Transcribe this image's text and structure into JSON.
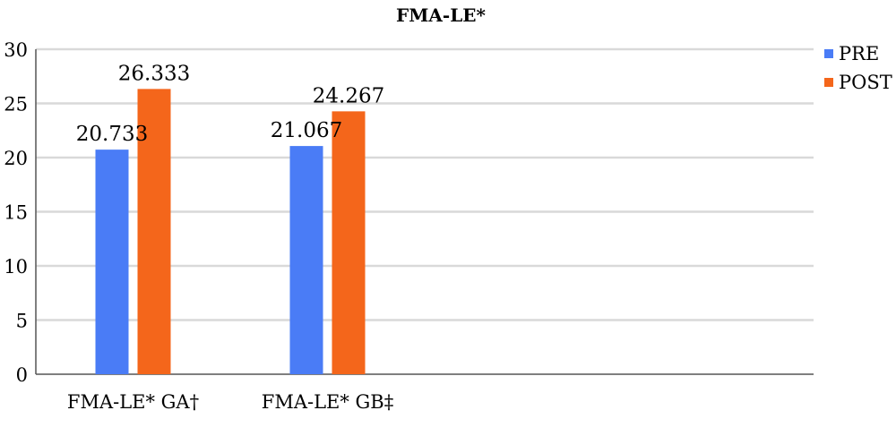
{
  "chart_data": {
    "type": "bar",
    "title": "FMA-LE*",
    "xlabel": "",
    "ylabel": "",
    "categories": [
      "FMA-LE* GA†",
      "FMA-LE* GB‡",
      "",
      ""
    ],
    "series": [
      {
        "name": "PRE",
        "color": "#4a7cf6",
        "values": [
          20.733,
          21.067,
          null,
          null
        ],
        "labels": [
          "20.733",
          "21.067",
          "",
          ""
        ]
      },
      {
        "name": "POST",
        "color": "#f4661b",
        "values": [
          26.333,
          24.267,
          null,
          null
        ],
        "labels": [
          "26.333",
          "24.267",
          "",
          ""
        ]
      }
    ],
    "ylim": [
      0,
      30
    ],
    "yticks": [
      0,
      5,
      10,
      15,
      20,
      25,
      30
    ],
    "grid": true,
    "gridColor": "#d9d9d9",
    "axisColor": "#555555",
    "legend": "right"
  }
}
